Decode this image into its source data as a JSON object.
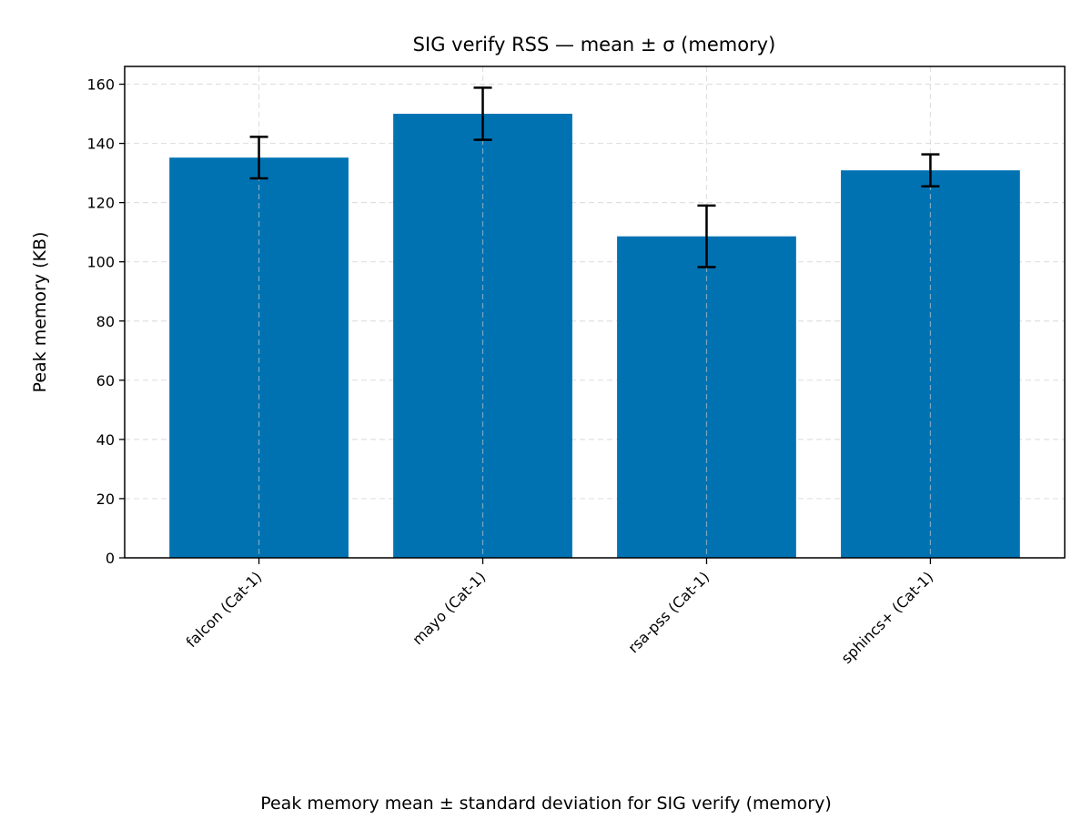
{
  "chart_data": {
    "type": "bar",
    "title": "SIG verify RSS — mean ± σ (memory)",
    "xlabel": "",
    "ylabel": "Peak memory (KB)",
    "caption": "Peak memory mean ± standard deviation for SIG verify (memory)",
    "categories": [
      "falcon (Cat-1)",
      "mayo (Cat-1)",
      "rsa-pss (Cat-1)",
      "sphincs+ (Cat-1)"
    ],
    "values": [
      135.2,
      150.0,
      108.6,
      130.9
    ],
    "errors": [
      7.0,
      8.8,
      10.4,
      5.4
    ],
    "ylim": [
      0,
      166
    ],
    "yticks": [
      0,
      20,
      40,
      60,
      80,
      100,
      120,
      140,
      160
    ],
    "grid": true,
    "colors": {
      "bar": "#0072b2",
      "errorbar": "#000000",
      "grid": "#cccccc",
      "axis": "#000000"
    }
  }
}
